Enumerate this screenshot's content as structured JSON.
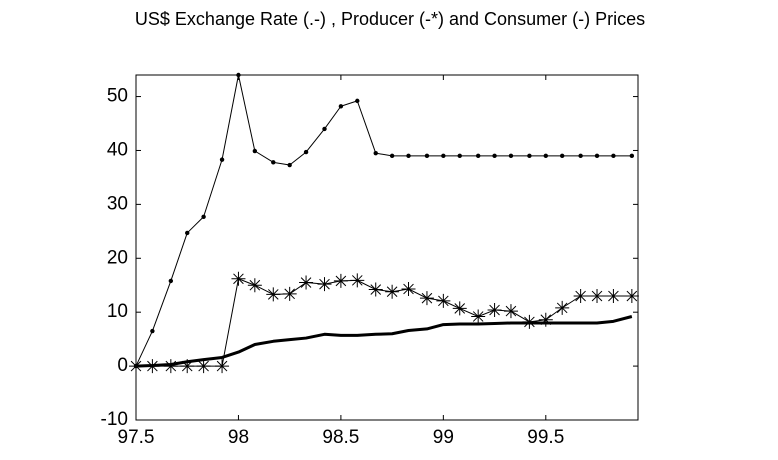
{
  "chart_data": {
    "type": "line",
    "title": "US$ Exchange Rate (.-) , Producer (-*) and Consumer (-) Prices",
    "x": [
      97.5,
      97.58,
      97.67,
      97.75,
      97.83,
      97.92,
      98.0,
      98.08,
      98.17,
      98.25,
      98.33,
      98.42,
      98.5,
      98.58,
      98.67,
      98.75,
      98.83,
      98.92,
      99.0,
      99.08,
      99.17,
      99.25,
      99.33,
      99.42,
      99.5,
      99.58,
      99.67,
      99.75,
      99.83,
      99.92
    ],
    "series": [
      {
        "color": "#000000",
        "marker": "dot",
        "linewidth": 1,
        "values": [
          0,
          6.5,
          15.8,
          24.7,
          27.7,
          38.3,
          54,
          39.9,
          37.8,
          37.3,
          39.7,
          44,
          48.2,
          49.2,
          39.5,
          39,
          39,
          39,
          39,
          39,
          39,
          39,
          39,
          39,
          39,
          39,
          39,
          39,
          39,
          39
        ]
      },
      {
        "color": "#000000",
        "marker": "star",
        "linewidth": 1,
        "values": [
          0,
          0,
          0,
          0,
          0,
          0,
          16.2,
          15,
          13.3,
          13.4,
          15.5,
          15.2,
          15.8,
          15.9,
          14.2,
          13.8,
          14.3,
          12.6,
          12.1,
          10.7,
          9.2,
          10.4,
          10.2,
          8.2,
          8.6,
          10.8,
          13,
          13,
          13,
          13
        ]
      },
      {
        "color": "#000000",
        "marker": "none",
        "linewidth": 3,
        "values": [
          0,
          0.1,
          0.3,
          0.8,
          1.2,
          1.6,
          2.6,
          4,
          4.6,
          4.9,
          5.2,
          5.9,
          5.7,
          5.7,
          5.9,
          6,
          6.6,
          6.9,
          7.7,
          7.8,
          7.8,
          7.9,
          8,
          8,
          8,
          8,
          8,
          8,
          8.3,
          9.2
        ]
      }
    ],
    "xlim": [
      97.5,
      99.95
    ],
    "ylim": [
      -10,
      54
    ],
    "xticks": [
      97.5,
      98,
      98.5,
      99,
      99.5
    ],
    "yticks": [
      -10,
      0,
      10,
      20,
      30,
      40,
      50
    ],
    "grid": false
  }
}
